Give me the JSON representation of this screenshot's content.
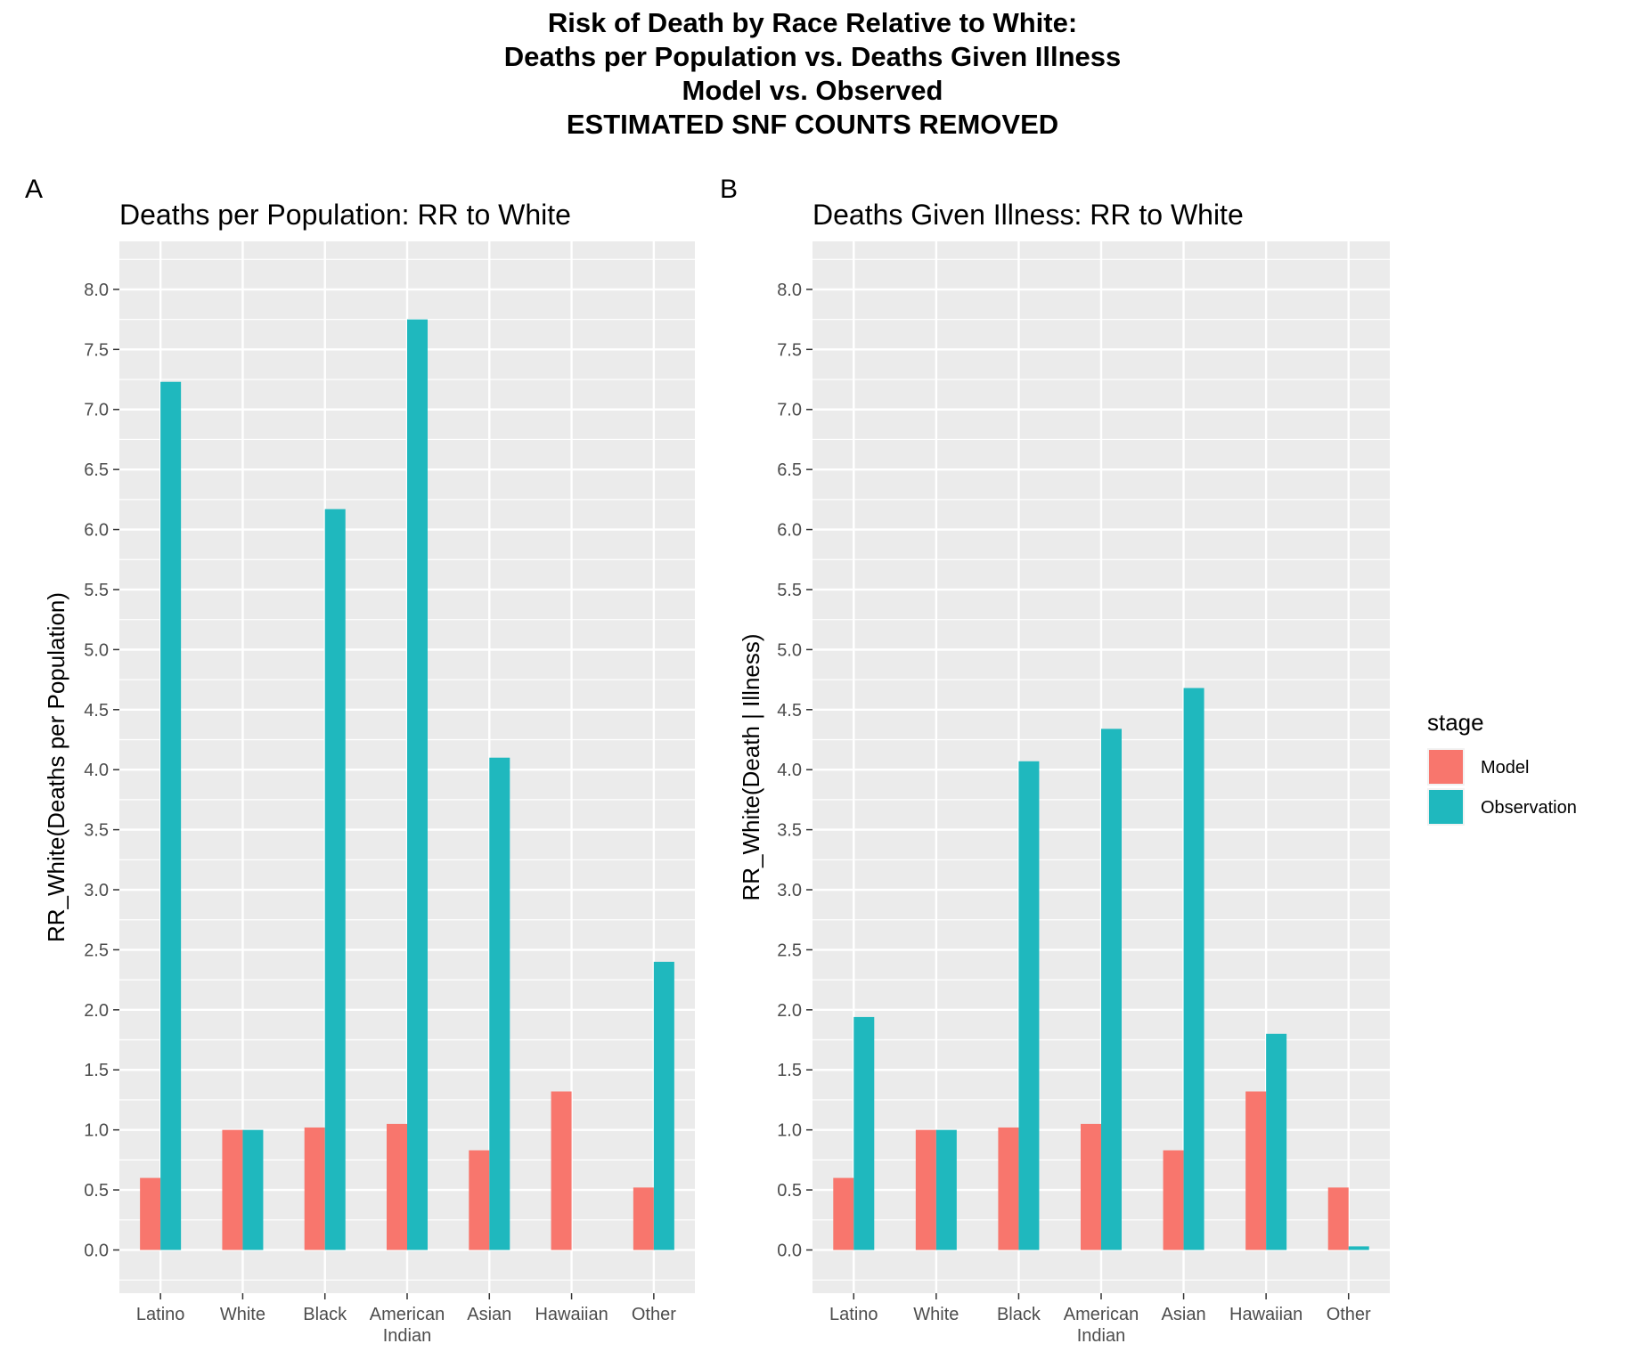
{
  "title_lines": [
    "Risk of Death by Race Relative to White:",
    "Deaths per Population vs. Deaths Given Illness",
    "Model vs. Observed",
    "ESTIMATED SNF COUNTS REMOVED"
  ],
  "colors": {
    "Model": "#F8766D",
    "Observation": "#1FB8BE",
    "panel_bg": "#EBEBEB",
    "grid": "#FFFFFF"
  },
  "legend": {
    "title": "stage",
    "placement": "right",
    "items": [
      "Model",
      "Observation"
    ]
  },
  "chart_data": [
    {
      "tag": "A",
      "type": "bar",
      "title": "Deaths per Population: RR to White",
      "xlabel": "",
      "ylabel": "RR_White(Deaths per Population)",
      "categories": [
        [
          "Latino"
        ],
        [
          "White"
        ],
        [
          "Black"
        ],
        [
          "American",
          "Indian"
        ],
        [
          "Asian"
        ],
        [
          "Hawaiian"
        ],
        [
          "Other"
        ]
      ],
      "series": [
        {
          "name": "Model",
          "values": [
            0.6,
            1.0,
            1.02,
            1.05,
            0.83,
            1.32,
            0.52
          ]
        },
        {
          "name": "Observation",
          "values": [
            7.23,
            1.0,
            6.17,
            7.75,
            4.1,
            null,
            2.4
          ]
        }
      ],
      "ylim": [
        -0.36,
        8.4
      ],
      "yticks": [
        0.0,
        0.5,
        1.0,
        1.5,
        2.0,
        2.5,
        3.0,
        3.5,
        4.0,
        4.5,
        5.0,
        5.5,
        6.0,
        6.5,
        7.0,
        7.5,
        8.0
      ],
      "ytick_labels": [
        "0.0",
        "0.5",
        "1.0",
        "1.5",
        "2.0",
        "2.5",
        "3.0",
        "3.5",
        "4.0",
        "4.5",
        "5.0",
        "5.5",
        "6.0",
        "6.5",
        "7.0",
        "7.5",
        "8.0"
      ],
      "grid": true
    },
    {
      "tag": "B",
      "type": "bar",
      "title": "Deaths Given Illness: RR to White",
      "xlabel": "",
      "ylabel": "RR_White(Death | Illness)",
      "categories": [
        [
          "Latino"
        ],
        [
          "White"
        ],
        [
          "Black"
        ],
        [
          "American",
          "Indian"
        ],
        [
          "Asian"
        ],
        [
          "Hawaiian"
        ],
        [
          "Other"
        ]
      ],
      "series": [
        {
          "name": "Model",
          "values": [
            0.6,
            1.0,
            1.02,
            1.05,
            0.83,
            1.32,
            0.52
          ]
        },
        {
          "name": "Observation",
          "values": [
            1.94,
            1.0,
            4.07,
            4.34,
            4.68,
            1.8,
            0.03
          ]
        }
      ],
      "ylim": [
        -0.36,
        8.4
      ],
      "yticks": [
        0.0,
        0.5,
        1.0,
        1.5,
        2.0,
        2.5,
        3.0,
        3.5,
        4.0,
        4.5,
        5.0,
        5.5,
        6.0,
        6.5,
        7.0,
        7.5,
        8.0
      ],
      "ytick_labels": [
        "0.0",
        "0.5",
        "1.0",
        "1.5",
        "2.0",
        "2.5",
        "3.0",
        "3.5",
        "4.0",
        "4.5",
        "5.0",
        "5.5",
        "6.0",
        "6.5",
        "7.0",
        "7.5",
        "8.0"
      ],
      "grid": true
    }
  ]
}
